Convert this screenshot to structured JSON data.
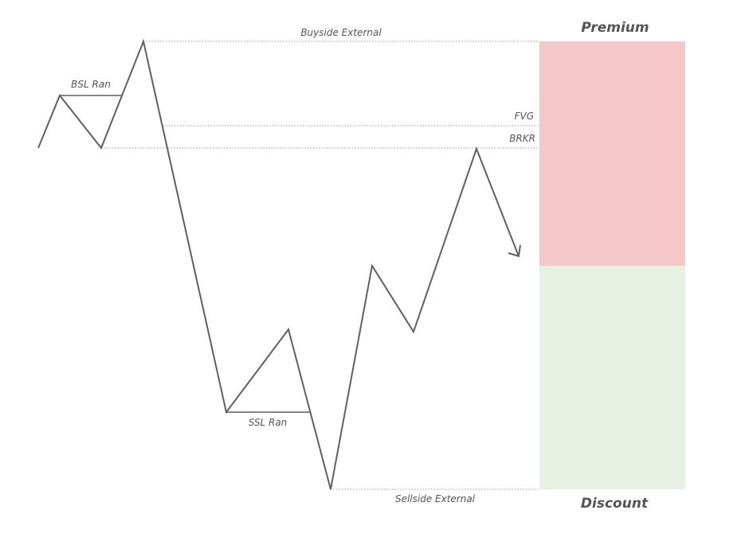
{
  "zones": {
    "premium": {
      "label": "Premium",
      "color": "#f4c7c8"
    },
    "discount": {
      "label": "Discount",
      "color": "#e7f2e4"
    }
  },
  "levels": {
    "buyside_external": "Buyside External",
    "fvg": "FVG",
    "brkr": "BRKR",
    "sellside_external": "Sellside External"
  },
  "annotations": {
    "bsl_ran": "BSL Ran",
    "ssl_ran": "SSL Ran"
  },
  "colors": {
    "price_line": "#5f5f64",
    "guide_line": "#9a9a9a",
    "text": "#555555"
  }
}
